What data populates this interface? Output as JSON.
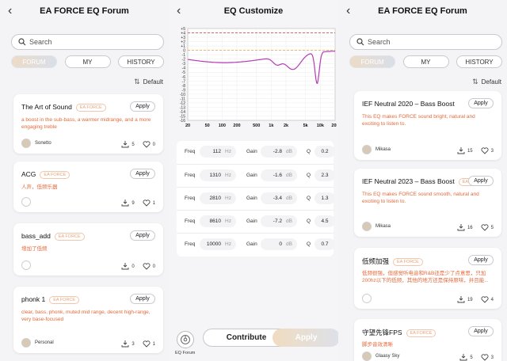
{
  "left": {
    "title": "EA FORCE EQ Forum",
    "search_placeholder": "Search",
    "tabs": [
      "FORUM",
      "MY",
      "HISTORY"
    ],
    "sort_label": "Default",
    "cards": [
      {
        "name": "The Art of Sound",
        "badge": "EA FORCE",
        "apply": "Apply",
        "desc": "a boost in the sub-bass, a warmer midrange, and a more engaging treble",
        "author": "Sonetto",
        "downloads": "5",
        "likes": "0"
      },
      {
        "name": "ACG",
        "badge": "EA FORCE",
        "apply": "Apply",
        "desc": "人声，低频乐器",
        "author": "",
        "downloads": "9",
        "likes": "1"
      },
      {
        "name": "bass_add",
        "badge": "EA FORCE",
        "apply": "Apply",
        "desc": "增加了低频",
        "author": "",
        "downloads": "0",
        "likes": "0"
      },
      {
        "name": "phonk 1",
        "badge": "EA FORCE",
        "apply": "Apply",
        "desc": "clear, bass, phonk, muted mid range, decent high-range, very base-focused",
        "author": "Personal",
        "downloads": "3",
        "likes": "1"
      }
    ]
  },
  "mid": {
    "title": "EQ Customize",
    "y_ticks": [
      "+5",
      "+4",
      "+3",
      "+2",
      "+1",
      "0",
      "-1",
      "-2",
      "-3",
      "-4",
      "-5",
      "-6",
      "-7",
      "-8",
      "-9",
      "-10",
      "-11",
      "-12",
      "-13",
      "-14",
      "-15",
      "-16"
    ],
    "x_ticks": [
      "20",
      "50",
      "100",
      "200",
      "500",
      "1k",
      "2k",
      "5k",
      "10k",
      "20k"
    ],
    "bands": [
      {
        "freq": "112",
        "gain": "-2.8",
        "q": "0.2"
      },
      {
        "freq": "1310",
        "gain": "-1.6",
        "q": "2.3"
      },
      {
        "freq": "2810",
        "gain": "-3.4",
        "q": "1.3"
      },
      {
        "freq": "8610",
        "gain": "-7.2",
        "q": "4.5"
      },
      {
        "freq": "10000",
        "gain": "0",
        "q": "0.7"
      }
    ],
    "labels": {
      "freq": "Freq",
      "gain": "Gain",
      "q": "Q",
      "hz": "Hz",
      "db": "dB"
    },
    "eq_forum_label": "EQ Forum",
    "contribute_label": "Contribute",
    "apply_label": "Apply"
  },
  "right": {
    "title": "EA FORCE EQ Forum",
    "search_placeholder": "Search",
    "tabs": [
      "FORUM",
      "MY",
      "HISTORY"
    ],
    "sort_label": "Default",
    "cards": [
      {
        "name": "IEF Neutral 2020 – Bass Boost",
        "badge": "",
        "apply": "Apply",
        "desc": "This EQ makes FORCE sound bright, natural and exciting to listen to.",
        "author": "Mikasa",
        "downloads": "15",
        "likes": "3"
      },
      {
        "name": "IEF Neutral 2023 – Bass Boost",
        "badge": "EA FORCE",
        "apply": "Apply",
        "desc": "This EQ makes FORCE sound smooth, natural and exciting to listen to.",
        "author": "Mikasa",
        "downloads": "16",
        "likes": "5"
      },
      {
        "name": "低频加强",
        "badge": "EA FORCE",
        "apply": "Apply",
        "desc": "低频很强，但感觉听电音和R&B还是少了点意思，只加200hz以下的低频，其他的地方还是保持原味，并且能...",
        "author": "",
        "downloads": "19",
        "likes": "4"
      },
      {
        "name": "守望先锋FPS",
        "badge": "EA FORCE",
        "apply": "Apply",
        "desc": "脚步音效清晰",
        "author": "Glaasy Sky",
        "downloads": "5",
        "likes": "3"
      }
    ]
  },
  "colors": {
    "accent_text": "#e46a3a",
    "curve": "#b43cb4",
    "ref_line_top": "#d23a3a",
    "ref_line_mid": "#e8a23c"
  }
}
